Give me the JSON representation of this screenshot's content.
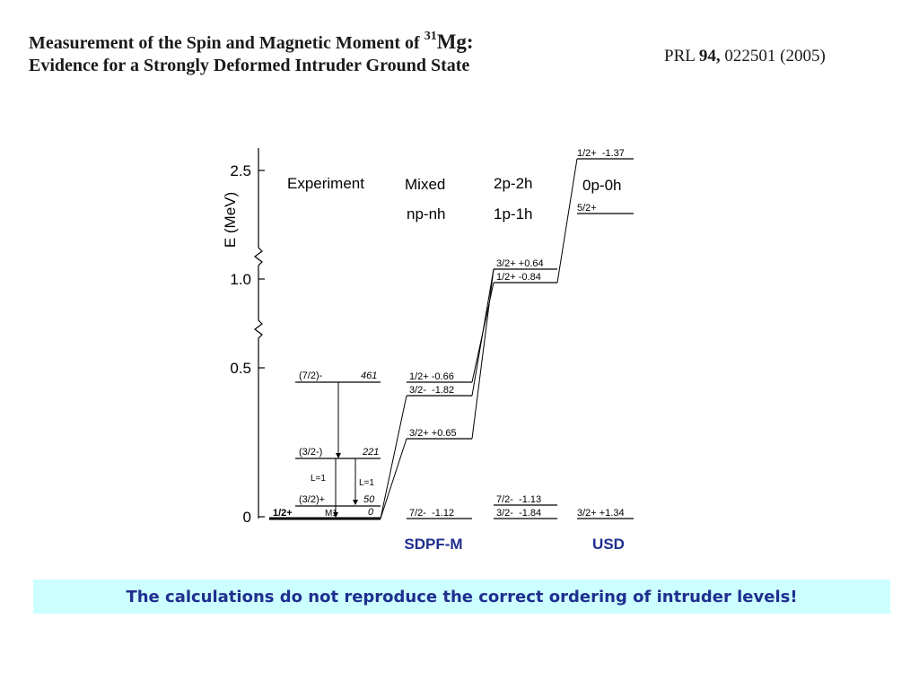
{
  "header": {
    "title_line1_prefix": "Measurement of the Spin and Magnetic Moment of ",
    "title_mass_number": "31",
    "title_element": "Mg:",
    "title_line2": "Evidence for a Strongly Deformed Intruder Ground State",
    "citation_journal": "PRL ",
    "citation_volume": "94,",
    "citation_rest": " 022501 (2005)"
  },
  "diagram": {
    "axis_label": "E (MeV)",
    "ticks": [
      "2.5",
      "1.0",
      "0.5",
      "0"
    ],
    "columns": {
      "experiment": "Experiment",
      "mixed": [
        "Mixed",
        "np-nh"
      ],
      "twop": [
        "2p-2h",
        "1p-1h"
      ],
      "zerop": [
        "0p-0h"
      ]
    },
    "experiment_levels": [
      {
        "spin": "(7/2)-",
        "energy": "461"
      },
      {
        "spin": "(3/2-)",
        "energy": "221"
      },
      {
        "spin": "(3/2)+",
        "energy": "50"
      },
      {
        "spin": "1/2+",
        "energy": "0"
      }
    ],
    "transitions": [
      "L=1",
      "L=1",
      "M1"
    ],
    "mixed_levels": [
      "1/2+ -0.66",
      "3/2-  -1.82",
      "3/2+ +0.65",
      "7/2-  -1.12"
    ],
    "twop_levels": [
      "3/2+ +0.64",
      "1/2+ -0.84",
      "7/2-  -1.13",
      "3/2-  -1.84"
    ],
    "zerop_levels": [
      "1/2+  -1.37",
      "5/2+",
      "3/2+ +1.34"
    ],
    "model_labels": [
      "SDPF-M",
      "USD"
    ]
  },
  "footer": {
    "message": "The calculations do not reproduce the correct ordering of intruder levels!"
  },
  "colors": {
    "accent_text": "#1f2f8f",
    "banner_background": "#ccffff"
  }
}
